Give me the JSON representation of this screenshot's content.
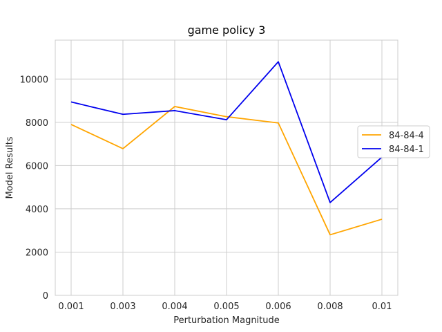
{
  "chart_data": {
    "type": "line",
    "title": "game policy 3",
    "xlabel": "Perturbation Magnitude",
    "ylabel": "Model Results",
    "categories": [
      "0.001",
      "0.003",
      "0.004",
      "0.005",
      "0.006",
      "0.008",
      "0.01"
    ],
    "ylim": [
      0,
      11800
    ],
    "yticks": [
      0,
      2000,
      4000,
      6000,
      8000,
      10000
    ],
    "grid": true,
    "legend_position": "right",
    "series": [
      {
        "name": "84-84-4",
        "color": "#ffa500",
        "values": [
          7900,
          6780,
          8730,
          8260,
          7970,
          2800,
          3520
        ]
      },
      {
        "name": "84-84-1",
        "color": "#0000ee",
        "values": [
          8940,
          8370,
          8540,
          8120,
          10800,
          4290,
          6390
        ]
      }
    ]
  }
}
